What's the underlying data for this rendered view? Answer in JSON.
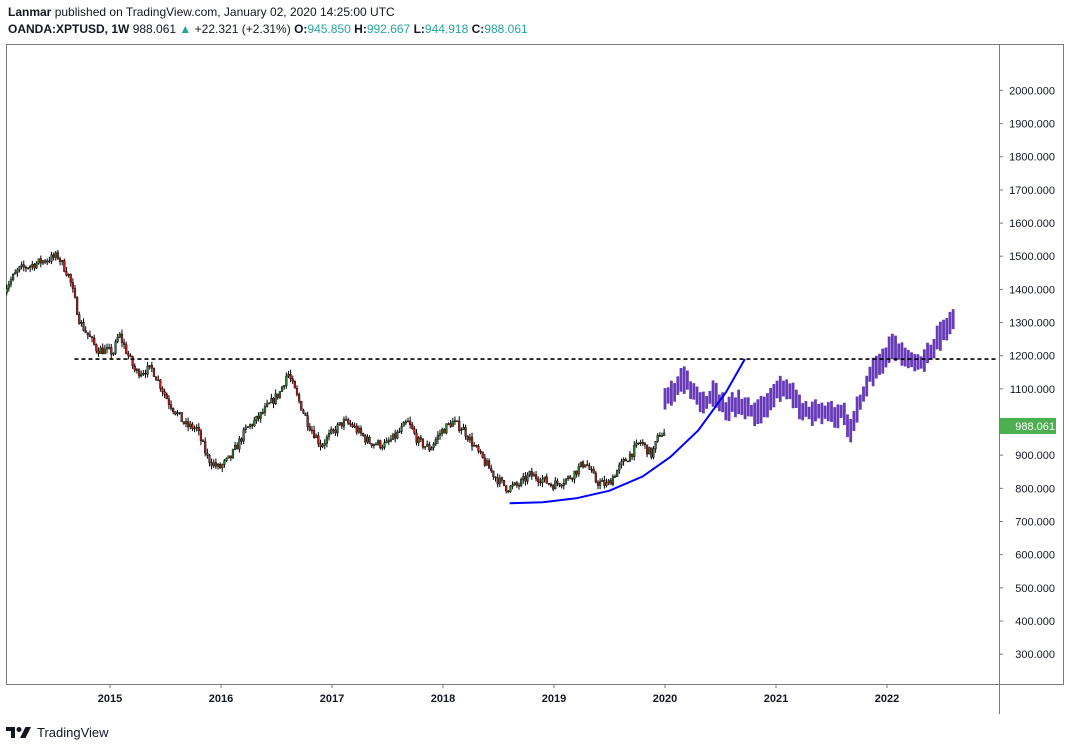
{
  "header": {
    "author": "Lanmar",
    "published": "published on TradingView.com, January 02, 2020 14:25:00 UTC",
    "symbol": "OANDA:XPTUSD, 1W",
    "price": "988.061",
    "change": "+22.321 (+2.31%)",
    "open_label": "O:",
    "open": "945.850",
    "high_label": "H:",
    "high": "992.667",
    "low_label": "L:",
    "low": "944.918",
    "close_label": "C:",
    "close": "988.061"
  },
  "brand": {
    "name": "TradingView"
  },
  "colors": {
    "up": "#26a69a",
    "price_badge": "#4caf50",
    "projection": "#673ab7",
    "curve": "#0000ff",
    "candle_up": "#2e7d32",
    "candle_down": "#b71c1c"
  },
  "chart_data": {
    "type": "candlestick",
    "title": "OANDA:XPTUSD, 1W",
    "ylim": [
      210,
      2140
    ],
    "y_ticks": [
      "2000.000",
      "1900.000",
      "1800.000",
      "1700.000",
      "1600.000",
      "1500.000",
      "1400.000",
      "1300.000",
      "1200.000",
      "1100.000",
      "1000.000",
      "900.000",
      "800.000",
      "700.000",
      "600.000",
      "500.000",
      "400.000",
      "300.000"
    ],
    "x_ticks": [
      "2015",
      "2016",
      "2017",
      "2018",
      "2019",
      "2020",
      "2021",
      "2022"
    ],
    "last_price_label": "988.061",
    "x_start": 2014.05,
    "history": {
      "start": 2014.05,
      "end": 2020.0,
      "anchors": [
        [
          2014.05,
          1395
        ],
        [
          2014.2,
          1460
        ],
        [
          2014.45,
          1490
        ],
        [
          2014.55,
          1500
        ],
        [
          2014.65,
          1440
        ],
        [
          2014.75,
          1300
        ],
        [
          2014.9,
          1220
        ],
        [
          2015.05,
          1210
        ],
        [
          2015.1,
          1265
        ],
        [
          2015.25,
          1150
        ],
        [
          2015.4,
          1160
        ],
        [
          2015.55,
          1060
        ],
        [
          2015.7,
          990
        ],
        [
          2015.8,
          980
        ],
        [
          2015.9,
          890
        ],
        [
          2016.0,
          860
        ],
        [
          2016.1,
          890
        ],
        [
          2016.25,
          980
        ],
        [
          2016.35,
          1010
        ],
        [
          2016.45,
          1050
        ],
        [
          2016.55,
          1090
        ],
        [
          2016.62,
          1150
        ],
        [
          2016.7,
          1080
        ],
        [
          2016.8,
          1000
        ],
        [
          2016.92,
          930
        ],
        [
          2017.0,
          960
        ],
        [
          2017.12,
          1000
        ],
        [
          2017.2,
          990
        ],
        [
          2017.35,
          940
        ],
        [
          2017.5,
          930
        ],
        [
          2017.6,
          960
        ],
        [
          2017.7,
          1000
        ],
        [
          2017.8,
          940
        ],
        [
          2017.9,
          920
        ],
        [
          2018.0,
          970
        ],
        [
          2018.1,
          1000
        ],
        [
          2018.2,
          980
        ],
        [
          2018.35,
          900
        ],
        [
          2018.5,
          830
        ],
        [
          2018.6,
          800
        ],
        [
          2018.7,
          810
        ],
        [
          2018.8,
          840
        ],
        [
          2018.9,
          830
        ],
        [
          2019.0,
          810
        ],
        [
          2019.15,
          830
        ],
        [
          2019.3,
          880
        ],
        [
          2019.4,
          820
        ],
        [
          2019.5,
          810
        ],
        [
          2019.6,
          860
        ],
        [
          2019.7,
          900
        ],
        [
          2019.8,
          940
        ],
        [
          2019.9,
          900
        ],
        [
          2019.97,
          965
        ]
      ]
    },
    "projection": {
      "start": 2020.0,
      "end": 2022.62,
      "anchors": [
        [
          2020.0,
          1060
        ],
        [
          2020.1,
          1100
        ],
        [
          2020.15,
          1140
        ],
        [
          2020.25,
          1090
        ],
        [
          2020.35,
          1050
        ],
        [
          2020.45,
          1090
        ],
        [
          2020.55,
          1030
        ],
        [
          2020.65,
          1060
        ],
        [
          2020.8,
          1030
        ],
        [
          2020.9,
          1040
        ],
        [
          2021.0,
          1090
        ],
        [
          2021.1,
          1110
        ],
        [
          2021.2,
          1050
        ],
        [
          2021.3,
          1030
        ],
        [
          2021.4,
          1040
        ],
        [
          2021.5,
          1020
        ],
        [
          2021.6,
          1030
        ],
        [
          2021.68,
          970
        ],
        [
          2021.75,
          1060
        ],
        [
          2021.85,
          1140
        ],
        [
          2021.95,
          1180
        ],
        [
          2022.05,
          1230
        ],
        [
          2022.15,
          1210
        ],
        [
          2022.25,
          1170
        ],
        [
          2022.35,
          1190
        ],
        [
          2022.45,
          1250
        ],
        [
          2022.55,
          1280
        ],
        [
          2022.62,
          1310
        ]
      ]
    },
    "resistance_level": 1190,
    "curve": {
      "x": [
        2018.6,
        2018.9,
        2019.2,
        2019.5,
        2019.8,
        2020.05,
        2020.3,
        2020.55,
        2020.72
      ],
      "y": [
        755,
        758,
        770,
        793,
        836,
        895,
        975,
        1090,
        1190
      ]
    }
  }
}
